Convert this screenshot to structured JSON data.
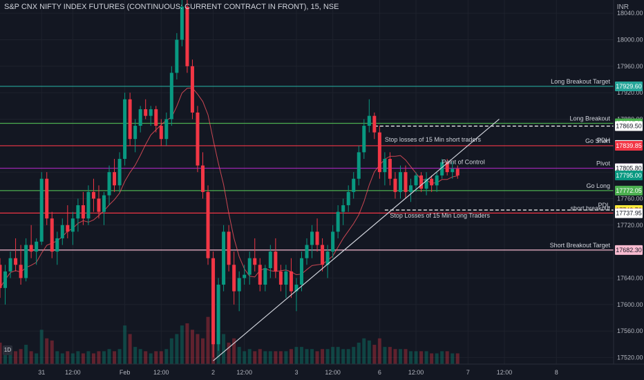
{
  "header": {
    "title": "S&P CNX NIFTY INDEX FUTURES (CONTINUOUS: CURRENT CONTRACT IN FRONT), 15, NSE",
    "currency": "INR",
    "interval_badge": "1D"
  },
  "chart_data": {
    "type": "candlestick",
    "ylim": [
      17510,
      18060
    ],
    "y_ticks": [
      18040,
      18000,
      17960,
      17920,
      17880,
      17840,
      17800,
      17760,
      17720,
      17680,
      17640,
      17600,
      17560,
      17520
    ],
    "y_tick_labels": [
      "18040.00",
      "18000.00",
      "17960.00",
      "17920.00",
      "17880.00",
      "17840.00",
      "17800.00",
      "17760.00",
      "17720.00",
      "17680.00",
      "17640.00",
      "17600.00",
      "17560.00",
      "17520.00"
    ],
    "x_ticks": [
      {
        "label": "31",
        "t": 8
      },
      {
        "label": "12:00",
        "t": 14
      },
      {
        "label": "Feb",
        "t": 24
      },
      {
        "label": "12:00",
        "t": 31
      },
      {
        "label": "2",
        "t": 41
      },
      {
        "label": "12:00",
        "t": 47
      },
      {
        "label": "3",
        "t": 57
      },
      {
        "label": "12:00",
        "t": 64
      },
      {
        "label": "6",
        "t": 73
      },
      {
        "label": "12:00",
        "t": 80
      },
      {
        "label": "7",
        "t": 90
      },
      {
        "label": "12:00",
        "t": 97
      },
      {
        "label": "8",
        "t": 107
      }
    ],
    "levels": [
      {
        "price": 17929.6,
        "label": "Long Breakout Target",
        "color": "#26a69a",
        "price_label": "17929.60",
        "style": "solid"
      },
      {
        "price": 17873.7,
        "label": "Long Breakout",
        "color": "#4caf50",
        "price_label": "17873.70",
        "style": "solid"
      },
      {
        "price": 17869.5,
        "label": "",
        "color": "#b2b5be",
        "price_label": "17869.50",
        "style": "dashed-right"
      },
      {
        "price": 17840.95,
        "label": "PDH",
        "color": "#b2b5be",
        "price_label": "17840.95",
        "style": "none"
      },
      {
        "price": 17839.85,
        "label": "Go Short",
        "color": "#f23645",
        "price_label": "17839.85",
        "style": "solid"
      },
      {
        "price": 17805.9,
        "label": "Pivot",
        "color": "#9c27b0",
        "price_label": "17805.90",
        "style": "solid"
      },
      {
        "price": 17805.8,
        "label": "",
        "color": "#b2b5be",
        "price_label": "17805.80",
        "style": "none"
      },
      {
        "price": 17795.0,
        "label": "",
        "color": "#089981",
        "price_label": "17795.00",
        "style": "none"
      },
      {
        "price": 17772.05,
        "label": "Go Long",
        "color": "#4caf50",
        "price_label": "17772.05",
        "style": "solid"
      },
      {
        "price": 17742.7,
        "label": "PDL",
        "color": "#ffeb3b",
        "price_label": "17742.70",
        "style": "dashed-right"
      },
      {
        "price": 17738.2,
        "label": "short breakout",
        "color": "#f23645",
        "price_label": "17738.20",
        "style": "solid"
      },
      {
        "price": 17737.95,
        "label": "",
        "color": "#b2b5be",
        "price_label": "17737.95",
        "style": "none"
      },
      {
        "price": 17682.3,
        "label": "Short  Breakout Target",
        "color": "#f8bbd0",
        "price_label": "17682.30",
        "style": "solid"
      }
    ],
    "annotations": [
      {
        "text": "Stop losses of 15 Min short traders",
        "price": 17844,
        "t": 74
      },
      {
        "text": "Point of Control",
        "price": 17810,
        "t": 85
      },
      {
        "text": "Stop Losses of 15 Min Long Traders",
        "price": 17729,
        "t": 75
      }
    ],
    "volume_axis_max": 140,
    "candles": [
      {
        "t": 0,
        "o": 17660,
        "h": 17670,
        "l": 17610,
        "c": 17625,
        "v": 50
      },
      {
        "t": 1,
        "o": 17625,
        "h": 17660,
        "l": 17600,
        "c": 17650,
        "v": 40
      },
      {
        "t": 2,
        "o": 17650,
        "h": 17680,
        "l": 17640,
        "c": 17670,
        "v": 35
      },
      {
        "t": 3,
        "o": 17670,
        "h": 17700,
        "l": 17650,
        "c": 17660,
        "v": 30
      },
      {
        "t": 4,
        "o": 17660,
        "h": 17690,
        "l": 17630,
        "c": 17640,
        "v": 35
      },
      {
        "t": 5,
        "o": 17640,
        "h": 17700,
        "l": 17635,
        "c": 17690,
        "v": 45
      },
      {
        "t": 6,
        "o": 17690,
        "h": 17720,
        "l": 17670,
        "c": 17680,
        "v": 30
      },
      {
        "t": 7,
        "o": 17680,
        "h": 17700,
        "l": 17660,
        "c": 17695,
        "v": 25
      },
      {
        "t": 8,
        "o": 17695,
        "h": 17800,
        "l": 17690,
        "c": 17790,
        "v": 80
      },
      {
        "t": 9,
        "o": 17790,
        "h": 17800,
        "l": 17720,
        "c": 17730,
        "v": 60
      },
      {
        "t": 10,
        "o": 17730,
        "h": 17740,
        "l": 17670,
        "c": 17680,
        "v": 55
      },
      {
        "t": 11,
        "o": 17680,
        "h": 17710,
        "l": 17660,
        "c": 17700,
        "v": 30
      },
      {
        "t": 12,
        "o": 17700,
        "h": 17730,
        "l": 17690,
        "c": 17720,
        "v": 25
      },
      {
        "t": 13,
        "o": 17720,
        "h": 17750,
        "l": 17700,
        "c": 17710,
        "v": 30
      },
      {
        "t": 14,
        "o": 17710,
        "h": 17740,
        "l": 17690,
        "c": 17730,
        "v": 25
      },
      {
        "t": 15,
        "o": 17730,
        "h": 17760,
        "l": 17710,
        "c": 17750,
        "v": 30
      },
      {
        "t": 16,
        "o": 17750,
        "h": 17770,
        "l": 17720,
        "c": 17730,
        "v": 25
      },
      {
        "t": 17,
        "o": 17730,
        "h": 17780,
        "l": 17720,
        "c": 17770,
        "v": 30
      },
      {
        "t": 18,
        "o": 17770,
        "h": 17790,
        "l": 17740,
        "c": 17760,
        "v": 25
      },
      {
        "t": 19,
        "o": 17760,
        "h": 17780,
        "l": 17730,
        "c": 17740,
        "v": 30
      },
      {
        "t": 20,
        "o": 17740,
        "h": 17770,
        "l": 17720,
        "c": 17765,
        "v": 30
      },
      {
        "t": 21,
        "o": 17765,
        "h": 17810,
        "l": 17750,
        "c": 17800,
        "v": 35
      },
      {
        "t": 22,
        "o": 17800,
        "h": 17820,
        "l": 17770,
        "c": 17780,
        "v": 30
      },
      {
        "t": 23,
        "o": 17780,
        "h": 17830,
        "l": 17770,
        "c": 17820,
        "v": 35
      },
      {
        "t": 24,
        "o": 17820,
        "h": 17920,
        "l": 17810,
        "c": 17910,
        "v": 90
      },
      {
        "t": 25,
        "o": 17910,
        "h": 17920,
        "l": 17840,
        "c": 17850,
        "v": 70
      },
      {
        "t": 26,
        "o": 17850,
        "h": 17880,
        "l": 17830,
        "c": 17870,
        "v": 40
      },
      {
        "t": 27,
        "o": 17870,
        "h": 17900,
        "l": 17860,
        "c": 17895,
        "v": 35
      },
      {
        "t": 28,
        "o": 17895,
        "h": 17910,
        "l": 17880,
        "c": 17885,
        "v": 30
      },
      {
        "t": 29,
        "o": 17885,
        "h": 17900,
        "l": 17870,
        "c": 17895,
        "v": 25
      },
      {
        "t": 30,
        "o": 17895,
        "h": 17900,
        "l": 17860,
        "c": 17870,
        "v": 30
      },
      {
        "t": 31,
        "o": 17870,
        "h": 17880,
        "l": 17840,
        "c": 17850,
        "v": 30
      },
      {
        "t": 32,
        "o": 17850,
        "h": 17890,
        "l": 17840,
        "c": 17880,
        "v": 35
      },
      {
        "t": 33,
        "o": 17880,
        "h": 17960,
        "l": 17870,
        "c": 17950,
        "v": 60
      },
      {
        "t": 34,
        "o": 17950,
        "h": 18010,
        "l": 17940,
        "c": 18000,
        "v": 70
      },
      {
        "t": 35,
        "o": 18000,
        "h": 18060,
        "l": 17990,
        "c": 18050,
        "v": 90
      },
      {
        "t": 36,
        "o": 18050,
        "h": 18060,
        "l": 17950,
        "c": 17960,
        "v": 95
      },
      {
        "t": 37,
        "o": 17960,
        "h": 17970,
        "l": 17880,
        "c": 17890,
        "v": 80
      },
      {
        "t": 38,
        "o": 17890,
        "h": 17900,
        "l": 17800,
        "c": 17810,
        "v": 70
      },
      {
        "t": 39,
        "o": 17810,
        "h": 17830,
        "l": 17760,
        "c": 17770,
        "v": 60
      },
      {
        "t": 40,
        "o": 17770,
        "h": 17780,
        "l": 17660,
        "c": 17670,
        "v": 110
      },
      {
        "t": 41,
        "o": 17670,
        "h": 17680,
        "l": 17520,
        "c": 17540,
        "v": 130
      },
      {
        "t": 42,
        "o": 17540,
        "h": 17640,
        "l": 17530,
        "c": 17630,
        "v": 80
      },
      {
        "t": 43,
        "o": 17630,
        "h": 17720,
        "l": 17620,
        "c": 17710,
        "v": 70
      },
      {
        "t": 44,
        "o": 17710,
        "h": 17720,
        "l": 17650,
        "c": 17660,
        "v": 50
      },
      {
        "t": 45,
        "o": 17660,
        "h": 17680,
        "l": 17600,
        "c": 17620,
        "v": 60
      },
      {
        "t": 46,
        "o": 17620,
        "h": 17650,
        "l": 17590,
        "c": 17640,
        "v": 40
      },
      {
        "t": 47,
        "o": 17640,
        "h": 17660,
        "l": 17630,
        "c": 17645,
        "v": 30
      },
      {
        "t": 48,
        "o": 17645,
        "h": 17680,
        "l": 17630,
        "c": 17670,
        "v": 35
      },
      {
        "t": 49,
        "o": 17670,
        "h": 17700,
        "l": 17650,
        "c": 17660,
        "v": 30
      },
      {
        "t": 50,
        "o": 17660,
        "h": 17670,
        "l": 17620,
        "c": 17630,
        "v": 35
      },
      {
        "t": 51,
        "o": 17630,
        "h": 17660,
        "l": 17620,
        "c": 17655,
        "v": 30
      },
      {
        "t": 52,
        "o": 17655,
        "h": 17690,
        "l": 17640,
        "c": 17680,
        "v": 30
      },
      {
        "t": 53,
        "o": 17680,
        "h": 17700,
        "l": 17640,
        "c": 17650,
        "v": 30
      },
      {
        "t": 54,
        "o": 17650,
        "h": 17660,
        "l": 17620,
        "c": 17630,
        "v": 30
      },
      {
        "t": 55,
        "o": 17630,
        "h": 17660,
        "l": 17610,
        "c": 17650,
        "v": 30
      },
      {
        "t": 56,
        "o": 17650,
        "h": 17670,
        "l": 17610,
        "c": 17620,
        "v": 35
      },
      {
        "t": 57,
        "o": 17620,
        "h": 17640,
        "l": 17590,
        "c": 17630,
        "v": 40
      },
      {
        "t": 58,
        "o": 17630,
        "h": 17680,
        "l": 17620,
        "c": 17670,
        "v": 40
      },
      {
        "t": 59,
        "o": 17670,
        "h": 17700,
        "l": 17660,
        "c": 17690,
        "v": 35
      },
      {
        "t": 60,
        "o": 17690,
        "h": 17720,
        "l": 17670,
        "c": 17710,
        "v": 35
      },
      {
        "t": 61,
        "o": 17710,
        "h": 17730,
        "l": 17680,
        "c": 17690,
        "v": 30
      },
      {
        "t": 62,
        "o": 17690,
        "h": 17700,
        "l": 17650,
        "c": 17660,
        "v": 35
      },
      {
        "t": 63,
        "o": 17660,
        "h": 17690,
        "l": 17640,
        "c": 17680,
        "v": 35
      },
      {
        "t": 64,
        "o": 17680,
        "h": 17720,
        "l": 17670,
        "c": 17710,
        "v": 40
      },
      {
        "t": 65,
        "o": 17710,
        "h": 17750,
        "l": 17700,
        "c": 17740,
        "v": 40
      },
      {
        "t": 66,
        "o": 17740,
        "h": 17760,
        "l": 17720,
        "c": 17750,
        "v": 35
      },
      {
        "t": 67,
        "o": 17750,
        "h": 17780,
        "l": 17740,
        "c": 17770,
        "v": 35
      },
      {
        "t": 68,
        "o": 17770,
        "h": 17800,
        "l": 17760,
        "c": 17790,
        "v": 40
      },
      {
        "t": 69,
        "o": 17790,
        "h": 17840,
        "l": 17780,
        "c": 17830,
        "v": 50
      },
      {
        "t": 70,
        "o": 17830,
        "h": 17880,
        "l": 17820,
        "c": 17870,
        "v": 60
      },
      {
        "t": 71,
        "o": 17870,
        "h": 17910,
        "l": 17860,
        "c": 17885,
        "v": 55
      },
      {
        "t": 72,
        "o": 17885,
        "h": 17890,
        "l": 17850,
        "c": 17860,
        "v": 45
      },
      {
        "t": 73,
        "o": 17860,
        "h": 17870,
        "l": 17790,
        "c": 17800,
        "v": 60
      },
      {
        "t": 74,
        "o": 17800,
        "h": 17830,
        "l": 17780,
        "c": 17820,
        "v": 40
      },
      {
        "t": 75,
        "o": 17820,
        "h": 17830,
        "l": 17780,
        "c": 17790,
        "v": 40
      },
      {
        "t": 76,
        "o": 17790,
        "h": 17800,
        "l": 17760,
        "c": 17770,
        "v": 35
      },
      {
        "t": 77,
        "o": 17770,
        "h": 17810,
        "l": 17760,
        "c": 17800,
        "v": 35
      },
      {
        "t": 78,
        "o": 17800,
        "h": 17810,
        "l": 17760,
        "c": 17770,
        "v": 35
      },
      {
        "t": 79,
        "o": 17770,
        "h": 17790,
        "l": 17755,
        "c": 17780,
        "v": 30
      },
      {
        "t": 80,
        "o": 17780,
        "h": 17800,
        "l": 17770,
        "c": 17795,
        "v": 30
      },
      {
        "t": 81,
        "o": 17795,
        "h": 17800,
        "l": 17770,
        "c": 17775,
        "v": 30
      },
      {
        "t": 82,
        "o": 17775,
        "h": 17800,
        "l": 17765,
        "c": 17790,
        "v": 30
      },
      {
        "t": 83,
        "o": 17790,
        "h": 17795,
        "l": 17770,
        "c": 17780,
        "v": 25
      },
      {
        "t": 84,
        "o": 17780,
        "h": 17800,
        "l": 17770,
        "c": 17795,
        "v": 25
      },
      {
        "t": 85,
        "o": 17795,
        "h": 17820,
        "l": 17790,
        "c": 17815,
        "v": 30
      },
      {
        "t": 86,
        "o": 17815,
        "h": 17820,
        "l": 17795,
        "c": 17800,
        "v": 30
      },
      {
        "t": 87,
        "o": 17800,
        "h": 17815,
        "l": 17790,
        "c": 17805,
        "v": 25
      },
      {
        "t": 88,
        "o": 17805,
        "h": 17810,
        "l": 17790,
        "c": 17795,
        "v": 25
      }
    ],
    "ma_line": {
      "color": "#f7525f"
    },
    "trendline": {
      "from": {
        "t": 41,
        "price": 17515
      },
      "to": {
        "t": 96,
        "price": 17880
      },
      "color": "#d1d4dc"
    }
  }
}
